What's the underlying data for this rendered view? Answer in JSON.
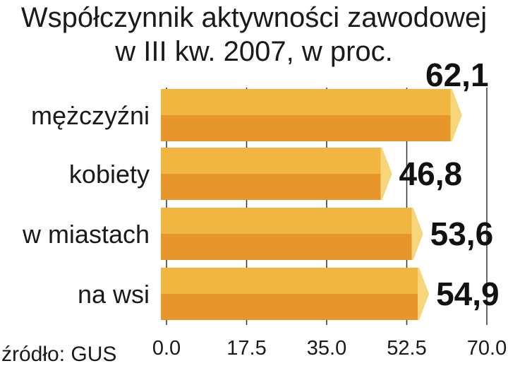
{
  "title_line1": "Współczynnik aktywności zawodowej",
  "title_line2": "w III kw. 2007, w proc.",
  "source": "źródło: GUS",
  "colors": {
    "bar_light": "#f1b640",
    "bar_dark": "#e6962a",
    "bar_cap": "#f7d57a"
  },
  "chart_data": {
    "type": "bar",
    "orientation": "horizontal",
    "title": "Współczynnik aktywności zawodowej w III kw. 2007, w proc.",
    "categories": [
      "mężczyźni",
      "kobiety",
      "w miastach",
      "na wsi"
    ],
    "values": [
      62.1,
      46.8,
      53.6,
      54.9
    ],
    "value_labels": [
      "62,1",
      "46,8",
      "53,6",
      "54,9"
    ],
    "xlim": [
      0,
      70
    ],
    "xticks": [
      "0.0",
      "17.5",
      "35.0",
      "52.5",
      "70.0"
    ],
    "grid": true
  }
}
